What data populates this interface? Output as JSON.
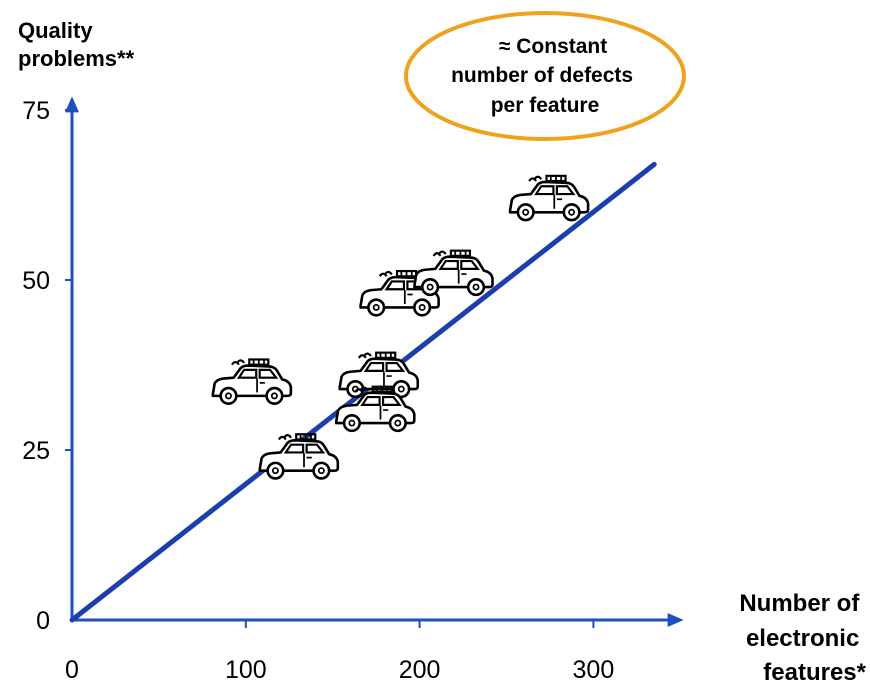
{
  "chart_data": {
    "type": "scatter",
    "title": "",
    "ylabel": [
      "Quality",
      "problems**"
    ],
    "xlabel": [
      "Number of",
      "electronic",
      "features*"
    ],
    "annotation": [
      "≈ Constant",
      "number of defects",
      "per feature"
    ],
    "xlim": [
      0,
      345
    ],
    "ylim": [
      0,
      77
    ],
    "xticks": [
      0,
      100,
      200,
      300
    ],
    "yticks": [
      0,
      25,
      50,
      75
    ],
    "trend_line": {
      "x": [
        0,
        335
      ],
      "y": [
        0,
        67
      ]
    },
    "series": [
      {
        "marker": "car-icon",
        "points": [
          {
            "x": 103,
            "y": 35
          },
          {
            "x": 130,
            "y": 24
          },
          {
            "x": 176,
            "y": 36
          },
          {
            "x": 174,
            "y": 31
          },
          {
            "x": 188,
            "y": 48
          },
          {
            "x": 219,
            "y": 51
          },
          {
            "x": 274,
            "y": 62
          }
        ]
      }
    ],
    "colors": {
      "axis": "#1f4fbf",
      "trend": "#1c3fae",
      "ellipse_border": "#f0a21f",
      "text": "#000000",
      "marker_outline": "#000000"
    }
  }
}
